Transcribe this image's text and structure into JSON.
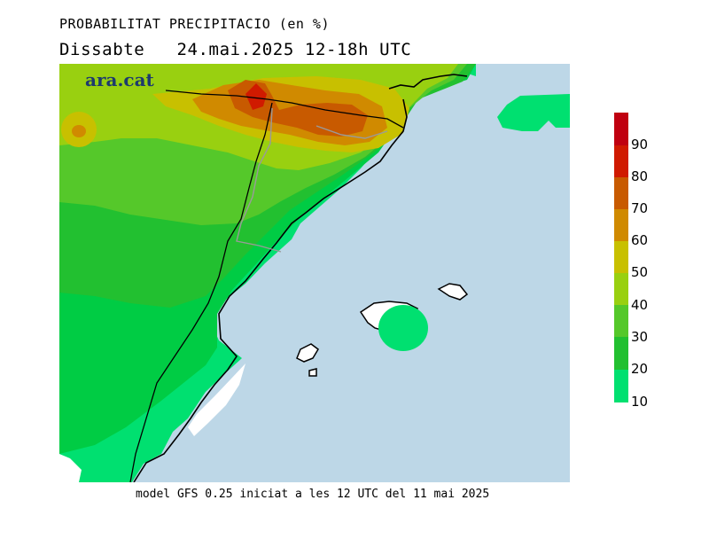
{
  "header": {
    "title": "PROBABILITAT PRECIPITACIO (en %)",
    "subtitle_day": "Dissabte",
    "subtitle_date": "24.mai.2025 12-18h UTC"
  },
  "logo": {
    "text": "ara.cat",
    "color": "#1d3a6e"
  },
  "footer": {
    "text": "model GFS 0.25 iniciat a les 12 UTC del 11 mai 2025"
  },
  "colors": {
    "sea": "#bdd7e7",
    "land_no_data": "#ffffff",
    "coast": "#000000",
    "border": "#9a9a9a"
  },
  "legend": {
    "levels": [
      {
        "label": "10",
        "color": "#00e070"
      },
      {
        "label": "20",
        "color": "#00cc44"
      },
      {
        "label": "30",
        "color": "#22c030"
      },
      {
        "label": "40",
        "color": "#55c82a"
      },
      {
        "label": "50",
        "color": "#99d010"
      },
      {
        "label": "60",
        "color": "#c8c000"
      },
      {
        "label": "70",
        "color": "#d08a00"
      },
      {
        "label": "80",
        "color": "#c85a00"
      },
      {
        "label": "90",
        "color": "#d01a00"
      }
    ],
    "top_color": "#c00010"
  }
}
